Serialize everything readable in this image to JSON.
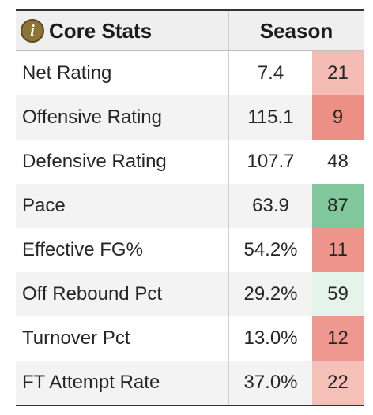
{
  "header": {
    "info_icon_glyph": "i",
    "title": "Core Stats",
    "season_label": "Season"
  },
  "colors": {
    "rank_strong_red": "#ec9086",
    "rank_medium_red": "#f0a79f",
    "rank_light_red": "#f4bcb4",
    "rank_neutral": "#ffffff",
    "rank_light_green": "#e4f4ea",
    "rank_strong_green": "#80c79b"
  },
  "rows": [
    {
      "label": "Net Rating",
      "value": "7.4",
      "rank": "21",
      "rank_color": "#f4bcb4"
    },
    {
      "label": "Offensive Rating",
      "value": "115.1",
      "rank": "9",
      "rank_color": "#ec9086"
    },
    {
      "label": "Defensive Rating",
      "value": "107.7",
      "rank": "48",
      "rank_color": "#ffffff"
    },
    {
      "label": "Pace",
      "value": "63.9",
      "rank": "87",
      "rank_color": "#80c79b"
    },
    {
      "label": "Effective FG%",
      "value": "54.2%",
      "rank": "11",
      "rank_color": "#ed958b"
    },
    {
      "label": "Off Rebound Pct",
      "value": "29.2%",
      "rank": "59",
      "rank_color": "#e4f4ea"
    },
    {
      "label": "Turnover Pct",
      "value": "13.0%",
      "rank": "12",
      "rank_color": "#ee988f"
    },
    {
      "label": "FT Attempt Rate",
      "value": "37.0%",
      "rank": "22",
      "rank_color": "#f5c0b8"
    }
  ]
}
